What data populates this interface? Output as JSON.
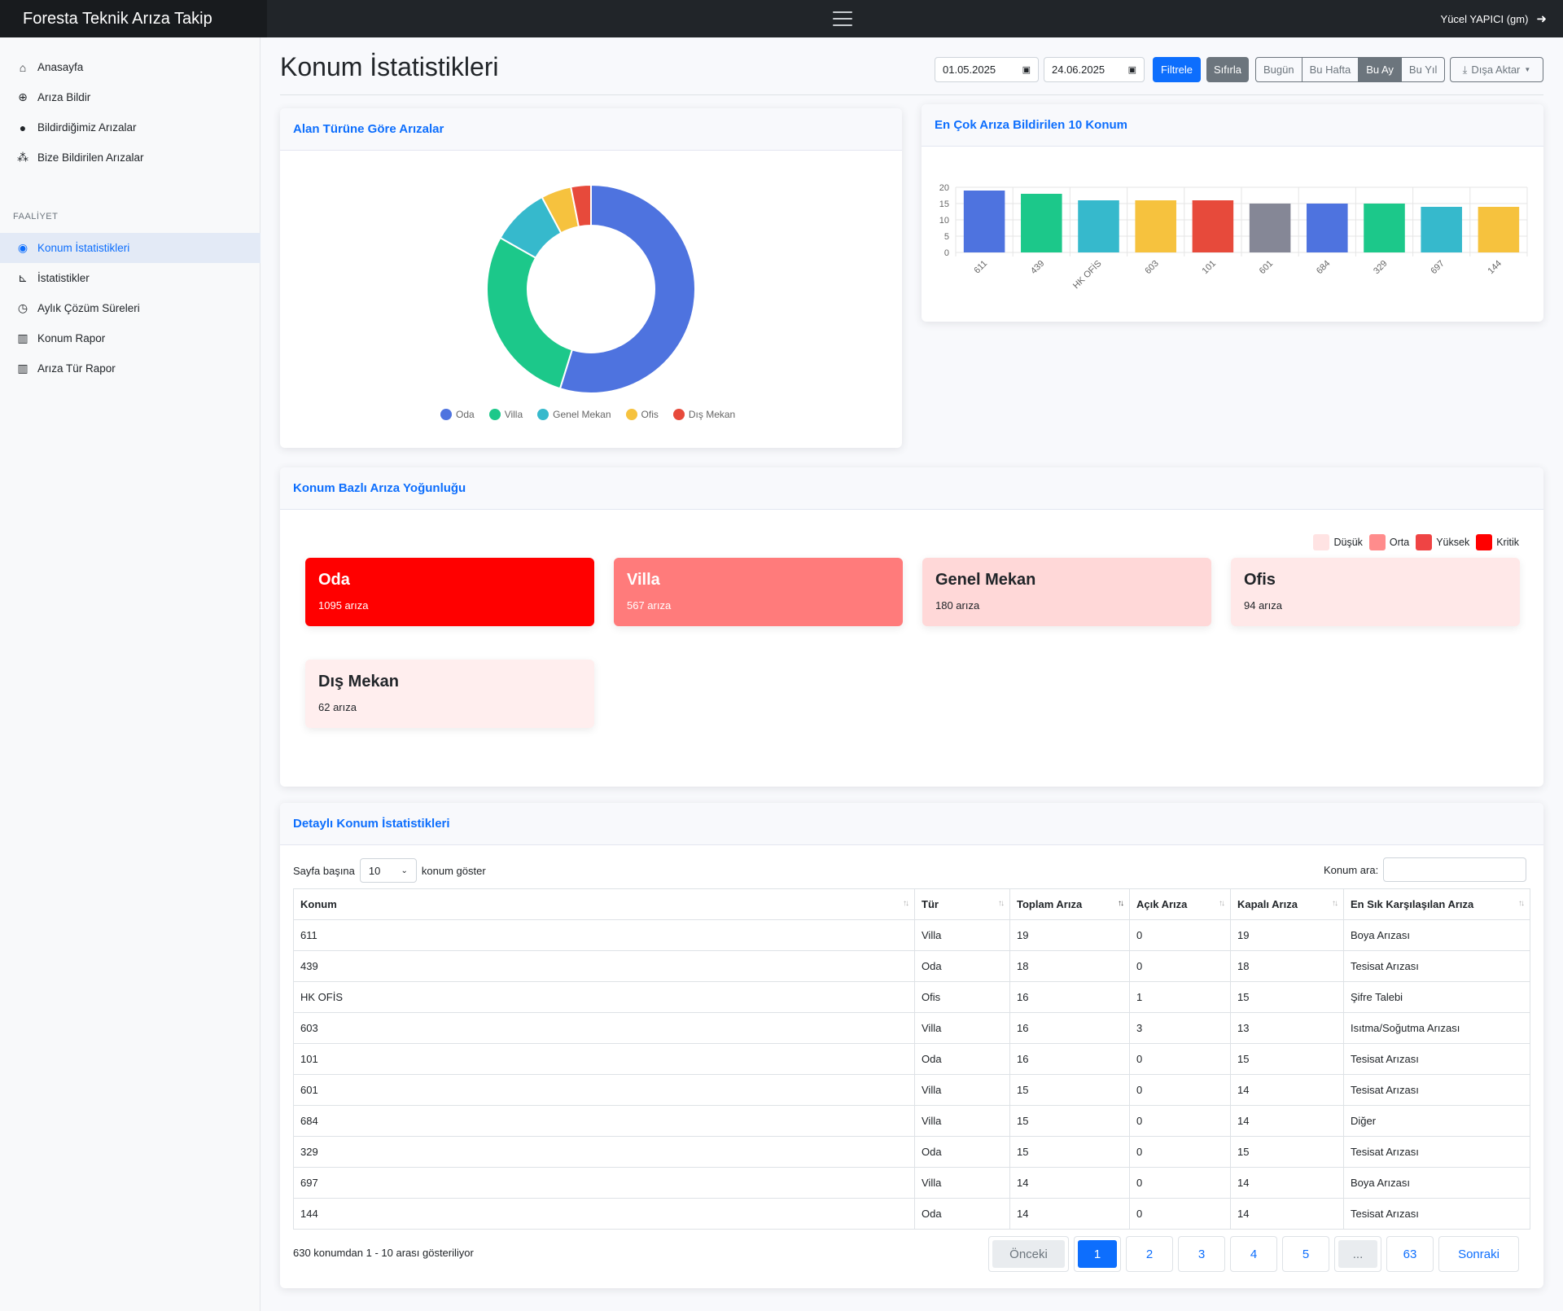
{
  "app": {
    "title": "Foresta Teknik Arıza Takip",
    "user": "Yücel YAPICI (gm)"
  },
  "sidebar": {
    "items": [
      {
        "label": "Anasayfa",
        "icon": "home-icon"
      },
      {
        "label": "Arıza Bildir",
        "icon": "plus-circle-icon"
      },
      {
        "label": "Bildirdiğimiz Arızalar",
        "icon": "user-icon"
      },
      {
        "label": "Bize Bildirilen Arızalar",
        "icon": "users-icon"
      }
    ],
    "heading": "FAALİYET",
    "activity": [
      {
        "label": "Konum İstatistikleri",
        "icon": "map-pin-icon",
        "active": true
      },
      {
        "label": "İstatistikler",
        "icon": "chart-icon"
      },
      {
        "label": "Aylık Çözüm Süreleri",
        "icon": "clock-icon"
      },
      {
        "label": "Konum Rapor",
        "icon": "map-icon"
      },
      {
        "label": "Arıza Tür Rapor",
        "icon": "map-icon"
      }
    ]
  },
  "header": {
    "title": "Konum İstatistikleri",
    "date_from": "01.05.2025",
    "date_to": "24.06.2025",
    "filter_label": "Filtrele",
    "reset_label": "Sıfırla",
    "ranges": [
      "Bugün",
      "Bu Hafta",
      "Bu Ay",
      "Bu Yıl"
    ],
    "selected_range": "Bu Ay",
    "export_label": "Dışa Aktar"
  },
  "donut_card": {
    "title": "Alan Türüne Göre Arızalar"
  },
  "bar_card": {
    "title": "En Çok Arıza Bildirilen 10 Konum"
  },
  "heat_card": {
    "title": "Konum Bazlı Arıza Yoğunluğu",
    "legend": [
      {
        "label": "Düşük",
        "color": "#ffe3e3"
      },
      {
        "label": "Orta",
        "color": "#ff8c8c"
      },
      {
        "label": "Yüksek",
        "color": "#ef4444"
      },
      {
        "label": "Kritik",
        "color": "#ff0000"
      }
    ],
    "items": [
      {
        "name": "Oda",
        "count": "1095 arıza",
        "color": "#ff0000",
        "text": "#ffffff"
      },
      {
        "name": "Villa",
        "count": "567 arıza",
        "color": "#ff7b7b",
        "text": "#ffffff"
      },
      {
        "name": "Genel Mekan",
        "count": "180 arıza",
        "color": "#ffd8d8",
        "text": "#212529"
      },
      {
        "name": "Ofis",
        "count": "94 arıza",
        "color": "#ffe8e8",
        "text": "#212529"
      },
      {
        "name": "Dış Mekan",
        "count": "62 arıza",
        "color": "#ffeeee",
        "text": "#212529"
      }
    ]
  },
  "table_card": {
    "title": "Detaylı Konum İstatistikleri",
    "per_page_prefix": "Sayfa başına",
    "per_page_value": "10",
    "per_page_suffix": "konum göster",
    "search_label": "Konum ara:",
    "columns": [
      "Konum",
      "Tür",
      "Toplam Arıza",
      "Açık Arıza",
      "Kapalı Arıza",
      "En Sık Karşılaşılan Arıza"
    ],
    "rows": [
      [
        "611",
        "Villa",
        "19",
        "0",
        "19",
        "Boya Arızası"
      ],
      [
        "439",
        "Oda",
        "18",
        "0",
        "18",
        "Tesisat Arızası"
      ],
      [
        "HK OFİS",
        "Ofis",
        "16",
        "1",
        "15",
        "Şifre Talebi"
      ],
      [
        "603",
        "Villa",
        "16",
        "3",
        "13",
        "Isıtma/Soğutma Arızası"
      ],
      [
        "101",
        "Oda",
        "16",
        "0",
        "15",
        "Tesisat Arızası"
      ],
      [
        "601",
        "Villa",
        "15",
        "0",
        "14",
        "Tesisat Arızası"
      ],
      [
        "684",
        "Villa",
        "15",
        "0",
        "14",
        "Diğer"
      ],
      [
        "329",
        "Oda",
        "15",
        "0",
        "15",
        "Tesisat Arızası"
      ],
      [
        "697",
        "Villa",
        "14",
        "0",
        "14",
        "Boya Arızası"
      ],
      [
        "144",
        "Oda",
        "14",
        "0",
        "14",
        "Tesisat Arızası"
      ]
    ],
    "info": "630 konumdan 1 - 10 arası gösteriliyor",
    "pagination": [
      "Önceki",
      "1",
      "2",
      "3",
      "4",
      "5",
      "...",
      "63",
      "Sonraki"
    ]
  },
  "chart_data": [
    {
      "type": "pie",
      "variant": "doughnut",
      "title": "Alan Türüne Göre Arızalar",
      "labels": [
        "Oda",
        "Villa",
        "Genel Mekan",
        "Ofis",
        "Dış Mekan"
      ],
      "values": [
        1095,
        567,
        180,
        94,
        62
      ],
      "colors": [
        "#4e73df",
        "#1cc88a",
        "#36b9cc",
        "#f6c23e",
        "#e74a3b"
      ],
      "legend": "bottom"
    },
    {
      "type": "bar",
      "title": "En Çok Arıza Bildirilen 10 Konum",
      "categories": [
        "611",
        "439",
        "HK OFİS",
        "603",
        "101",
        "601",
        "684",
        "329",
        "697",
        "144"
      ],
      "values": [
        19,
        18,
        16,
        16,
        16,
        15,
        15,
        15,
        14,
        14
      ],
      "colors": [
        "#4e73df",
        "#1cc88a",
        "#36b9cc",
        "#f6c23e",
        "#e74a3b",
        "#858796",
        "#4e73df",
        "#1cc88a",
        "#36b9cc",
        "#f6c23e"
      ],
      "yticks": [
        0,
        5,
        10,
        15,
        20
      ],
      "ylim": [
        0,
        20
      ],
      "grid": true
    }
  ]
}
